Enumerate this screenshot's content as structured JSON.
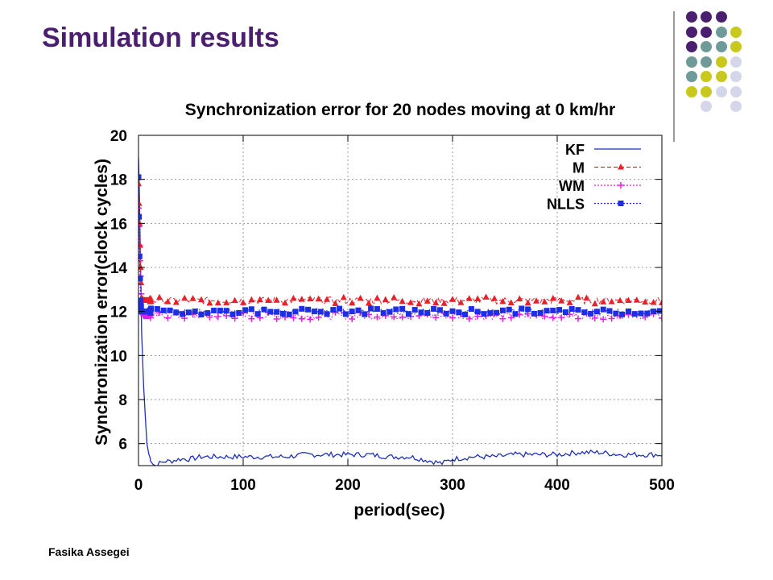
{
  "slide": {
    "title": "Simulation results",
    "footer": "Fasika Assegei"
  },
  "decor": {
    "dot_colors": {
      "purple": "#4b1f6f",
      "teal": "#6f9a9a",
      "olive": "#c8c81e",
      "lavender": "#d6d6ea"
    },
    "dot_grid": [
      [
        "",
        "purple",
        "purple",
        "purple",
        ""
      ],
      [
        "",
        "purple",
        "purple",
        "teal",
        "olive"
      ],
      [
        "",
        "purple",
        "teal",
        "teal",
        "olive"
      ],
      [
        "",
        "teal",
        "teal",
        "olive",
        "lavender"
      ],
      [
        "",
        "teal",
        "olive",
        "olive",
        "lavender"
      ],
      [
        "",
        "olive",
        "olive",
        "lavender",
        "lavender"
      ],
      [
        "",
        "",
        "lavender",
        "",
        "lavender"
      ]
    ]
  },
  "chart_data": {
    "type": "line",
    "title": "Synchronization error for 20 nodes moving at 0 km/hr",
    "xlabel": "period(sec)",
    "ylabel": "Synchronization error(clock cycles)",
    "xlim": [
      0,
      500
    ],
    "ylim": [
      5,
      20
    ],
    "xticks": [
      0,
      100,
      200,
      300,
      400,
      500
    ],
    "yticks": [
      6,
      8,
      10,
      12,
      14,
      16,
      18,
      20
    ],
    "grid": true,
    "legend_position": "top-right",
    "series": [
      {
        "name": "KF",
        "color": "#1f2fbf",
        "style": "solid",
        "marker": "none",
        "x": [
          0,
          1,
          2,
          3,
          5,
          8,
          10,
          13,
          16,
          20,
          25,
          30,
          40,
          50,
          60,
          80,
          100,
          120,
          140,
          160,
          180,
          200,
          220,
          240,
          260,
          270,
          280,
          290,
          300,
          320,
          340,
          360,
          380,
          400,
          420,
          440,
          460,
          480,
          500
        ],
        "values": [
          19.0,
          17.0,
          14.0,
          11.0,
          8.5,
          6.0,
          5.5,
          5.1,
          5.0,
          5.1,
          5.2,
          5.2,
          5.3,
          5.3,
          5.4,
          5.4,
          5.4,
          5.4,
          5.4,
          5.5,
          5.5,
          5.5,
          5.5,
          5.4,
          5.4,
          5.3,
          5.2,
          5.1,
          5.3,
          5.4,
          5.4,
          5.5,
          5.5,
          5.5,
          5.6,
          5.6,
          5.5,
          5.5,
          5.5
        ]
      },
      {
        "name": "M",
        "color": "#e8202a",
        "style": "dashed",
        "marker": "triangle",
        "x": [
          0,
          1,
          2,
          3,
          5,
          10,
          50,
          100,
          150,
          200,
          250,
          300,
          350,
          400,
          450,
          500
        ],
        "values": [
          17.8,
          16.0,
          14.0,
          12.6,
          12.5,
          12.5,
          12.5,
          12.5,
          12.5,
          12.5,
          12.5,
          12.5,
          12.5,
          12.5,
          12.5,
          12.5
        ]
      },
      {
        "name": "WM",
        "color": "#e020e0",
        "style": "dotted",
        "marker": "plus",
        "x": [
          0,
          1,
          2,
          3,
          5,
          10,
          50,
          100,
          150,
          200,
          250,
          300,
          350,
          400,
          450,
          500
        ],
        "values": [
          16.7,
          15.0,
          13.6,
          12.0,
          11.8,
          11.8,
          11.8,
          11.8,
          11.8,
          11.8,
          11.8,
          11.8,
          11.8,
          11.8,
          11.8,
          11.8
        ]
      },
      {
        "name": "NLLS",
        "color": "#1e2ee6",
        "style": "dotted",
        "marker": "square",
        "x": [
          0,
          1,
          2,
          3,
          5,
          10,
          50,
          100,
          150,
          200,
          250,
          300,
          350,
          400,
          450,
          500
        ],
        "values": [
          18.1,
          14.5,
          12.5,
          12.0,
          12.0,
          12.0,
          12.0,
          12.0,
          12.0,
          12.0,
          12.0,
          12.0,
          12.0,
          12.0,
          12.0,
          12.0
        ]
      }
    ]
  }
}
